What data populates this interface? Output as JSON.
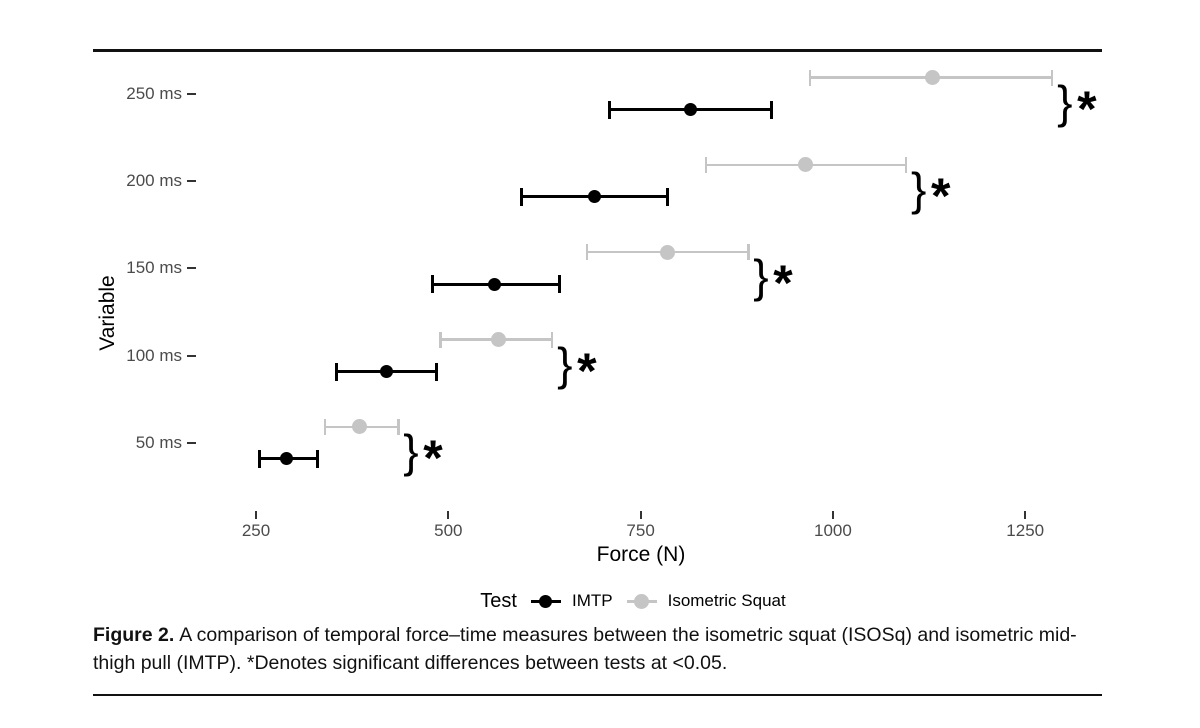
{
  "figure": {
    "caption_label": "Figure 2.",
    "caption_text": "A comparison of temporal force–time measures between the isometric squat (ISOSq) and isometric mid-thigh pull (IMTP). *Denotes significant differences between tests at <0.05."
  },
  "chart_data": {
    "type": "scatter",
    "subtype": "horizontal-dot-errorbar",
    "title": "",
    "xlabel": "Force (N)",
    "ylabel": "Variable",
    "xlim": [
      180,
      1360
    ],
    "x_ticks": [
      250,
      500,
      750,
      1000,
      1250
    ],
    "categories": [
      "250 ms",
      "200 ms",
      "150 ms",
      "100 ms",
      "50 ms"
    ],
    "series": [
      {
        "name": "IMTP",
        "color": "#000000",
        "means": [
          815,
          690,
          560,
          420,
          290
        ],
        "ci_low": [
          710,
          595,
          480,
          355,
          255
        ],
        "ci_high": [
          920,
          785,
          645,
          485,
          330
        ]
      },
      {
        "name": "Isometric Squat",
        "color": "#c5c5c5",
        "means": [
          1130,
          965,
          785,
          565,
          385
        ],
        "ci_low": [
          970,
          835,
          680,
          490,
          340
        ],
        "ci_high": [
          1285,
          1095,
          890,
          635,
          435
        ]
      }
    ],
    "significance": {
      "brace": "}",
      "star": "*",
      "significant_rows": [
        "250 ms",
        "200 ms",
        "150 ms",
        "100 ms",
        "50 ms"
      ]
    },
    "legend": {
      "title": "Test",
      "position": "bottom"
    },
    "grid": false,
    "tick_color": "#4b4b4b"
  }
}
